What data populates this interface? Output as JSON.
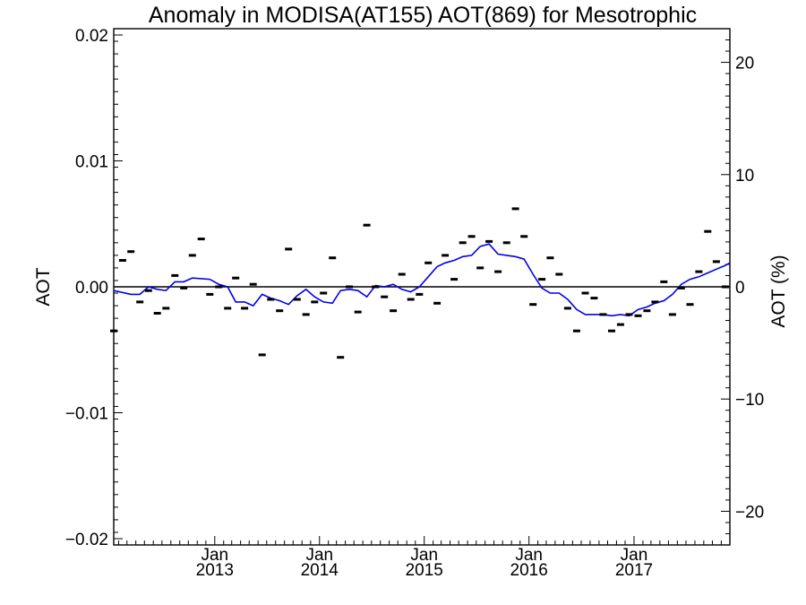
{
  "chart_data": {
    "type": "scatter",
    "title": "Anomaly in MODISA(AT155) AOT(869) for Mesotrophic",
    "ylabel": "AOT",
    "y2label": "AOT (%)",
    "xlim": [
      "2012-01-15",
      "2017-12-01"
    ],
    "ylim": [
      -0.0205,
      0.0205
    ],
    "y2lim": [
      -23,
      23
    ],
    "xticks": [
      {
        "date": "2013-01-01",
        "month": "Jan",
        "year": "2013"
      },
      {
        "date": "2014-01-01",
        "month": "Jan",
        "year": "2014"
      },
      {
        "date": "2015-01-01",
        "month": "Jan",
        "year": "2015"
      },
      {
        "date": "2016-01-01",
        "month": "Jan",
        "year": "2016"
      },
      {
        "date": "2017-01-01",
        "month": "Jan",
        "year": "2017"
      }
    ],
    "yticks": [
      {
        "value": 0.02,
        "label": "0.02"
      },
      {
        "value": 0.01,
        "label": "0.01"
      },
      {
        "value": 0.0,
        "label": "0.00"
      },
      {
        "value": -0.01,
        "label": "−0.01"
      },
      {
        "value": -0.02,
        "label": "−0.02"
      }
    ],
    "y2ticks": [
      {
        "value": 20,
        "label": "20"
      },
      {
        "value": 10,
        "label": "10"
      },
      {
        "value": 0,
        "label": "0"
      },
      {
        "value": -10,
        "label": "−10"
      },
      {
        "value": -20,
        "label": "−20"
      }
    ],
    "zero_line": true,
    "grid": false,
    "colors": {
      "smoothed": "#0000ee",
      "points": "#000000",
      "zero_line": "#000000"
    },
    "series": [
      {
        "kind": "points",
        "x": [
          "2012-01-15",
          "2012-02-15",
          "2012-03-15",
          "2012-04-15",
          "2012-05-15",
          "2012-06-15",
          "2012-07-15",
          "2012-08-15",
          "2012-09-15",
          "2012-10-15",
          "2012-11-15",
          "2012-12-15",
          "2013-01-15",
          "2013-02-15",
          "2013-03-15",
          "2013-04-15",
          "2013-05-15",
          "2013-06-15",
          "2013-07-15",
          "2013-08-15",
          "2013-09-15",
          "2013-10-15",
          "2013-11-15",
          "2013-12-15",
          "2014-01-15",
          "2014-02-15",
          "2014-03-15",
          "2014-04-15",
          "2014-05-15",
          "2014-06-15",
          "2014-07-15",
          "2014-08-15",
          "2014-09-15",
          "2014-10-15",
          "2014-11-15",
          "2014-12-15",
          "2015-01-15",
          "2015-02-15",
          "2015-03-15",
          "2015-04-15",
          "2015-05-15",
          "2015-06-15",
          "2015-07-15",
          "2015-08-15",
          "2015-09-15",
          "2015-10-15",
          "2015-11-15",
          "2015-12-15",
          "2016-01-15",
          "2016-02-15",
          "2016-03-15",
          "2016-04-15",
          "2016-05-15",
          "2016-06-15",
          "2016-07-15",
          "2016-08-15",
          "2016-09-15",
          "2016-10-15",
          "2016-11-15",
          "2016-12-15",
          "2017-01-15",
          "2017-02-15",
          "2017-03-15",
          "2017-04-15",
          "2017-05-15",
          "2017-06-15",
          "2017-07-15",
          "2017-08-15",
          "2017-09-15",
          "2017-10-15",
          "2017-11-15"
        ],
        "y": [
          -0.0035,
          0.0021,
          0.0028,
          -0.0012,
          -0.0003,
          -0.0021,
          -0.0017,
          0.0009,
          -0.0001,
          0.0025,
          0.0038,
          -0.0006,
          0.0,
          -0.0017,
          0.0007,
          -0.0017,
          0.0002,
          -0.0054,
          -0.001,
          -0.0019,
          0.003,
          -0.001,
          -0.0022,
          -0.0012,
          -0.0005,
          0.0023,
          -0.0056,
          0.0,
          -0.002,
          0.0049,
          0.0,
          -0.0008,
          -0.0019,
          0.001,
          -0.001,
          -0.0006,
          0.0019,
          -0.0013,
          0.0025,
          0.0006,
          0.0035,
          0.004,
          0.0015,
          0.0036,
          0.0012,
          0.0035,
          0.0062,
          0.004,
          -0.0014,
          0.0006,
          0.0023,
          0.001,
          -0.0017,
          -0.0035,
          -0.0005,
          -0.0009,
          -0.0022,
          -0.0035,
          -0.003,
          -0.0022,
          -0.0023,
          -0.0019,
          -0.0012,
          0.0004,
          -0.0022,
          -0.0001,
          -0.0014,
          0.0012,
          0.0044,
          0.002,
          0.0
        ]
      },
      {
        "kind": "line",
        "x": [
          "2012-01-15",
          "2012-03-15",
          "2012-04-15",
          "2012-05-15",
          "2012-06-15",
          "2012-07-15",
          "2012-08-15",
          "2012-09-15",
          "2012-10-15",
          "2012-12-15",
          "2013-01-15",
          "2013-02-15",
          "2013-03-15",
          "2013-04-15",
          "2013-05-15",
          "2013-06-15",
          "2013-07-15",
          "2013-08-15",
          "2013-09-15",
          "2013-10-15",
          "2013-11-15",
          "2013-12-15",
          "2014-01-15",
          "2014-02-15",
          "2014-03-15",
          "2014-04-15",
          "2014-05-15",
          "2014-06-15",
          "2014-07-15",
          "2014-08-15",
          "2014-09-15",
          "2014-10-15",
          "2014-11-15",
          "2014-12-15",
          "2015-01-15",
          "2015-02-15",
          "2015-03-15",
          "2015-04-15",
          "2015-05-15",
          "2015-06-15",
          "2015-07-15",
          "2015-08-15",
          "2015-09-15",
          "2015-10-15",
          "2015-11-15",
          "2015-12-15",
          "2016-01-15",
          "2016-02-15",
          "2016-03-15",
          "2016-04-15",
          "2016-05-15",
          "2016-06-15",
          "2016-07-15",
          "2016-08-15",
          "2016-09-15",
          "2016-10-15",
          "2016-11-15",
          "2016-12-15",
          "2017-01-15",
          "2017-02-15",
          "2017-03-15",
          "2017-04-15",
          "2017-05-15",
          "2017-06-15",
          "2017-07-15",
          "2017-08-15",
          "2017-09-15",
          "2017-10-15",
          "2017-11-15",
          "2017-12-01"
        ],
        "y": [
          -0.0003,
          -0.0006,
          -0.0006,
          0.0,
          -0.0002,
          -0.0003,
          0.0004,
          0.0004,
          0.0007,
          0.0006,
          0.0002,
          0.0,
          -0.0012,
          -0.0012,
          -0.0015,
          -0.0006,
          -0.0009,
          -0.0011,
          -0.0014,
          -0.0007,
          -0.0002,
          -0.0008,
          -0.0012,
          -0.0013,
          -0.0003,
          -0.0002,
          -0.0003,
          -0.0008,
          0.0001,
          0.0,
          0.0002,
          -0.0002,
          -0.0004,
          0.0,
          0.0008,
          0.0016,
          0.0019,
          0.0021,
          0.0024,
          0.0025,
          0.0032,
          0.0034,
          0.0026,
          0.0025,
          0.0024,
          0.0022,
          0.001,
          -0.0001,
          -0.0005,
          -0.0005,
          -0.001,
          -0.0018,
          -0.0022,
          -0.0022,
          -0.0022,
          -0.0023,
          -0.0022,
          -0.0023,
          -0.0018,
          -0.0016,
          -0.0013,
          -0.0011,
          -0.0006,
          0.0002,
          0.0006,
          0.0008,
          0.0011,
          0.0014,
          0.0017,
          0.0019
        ]
      }
    ]
  }
}
